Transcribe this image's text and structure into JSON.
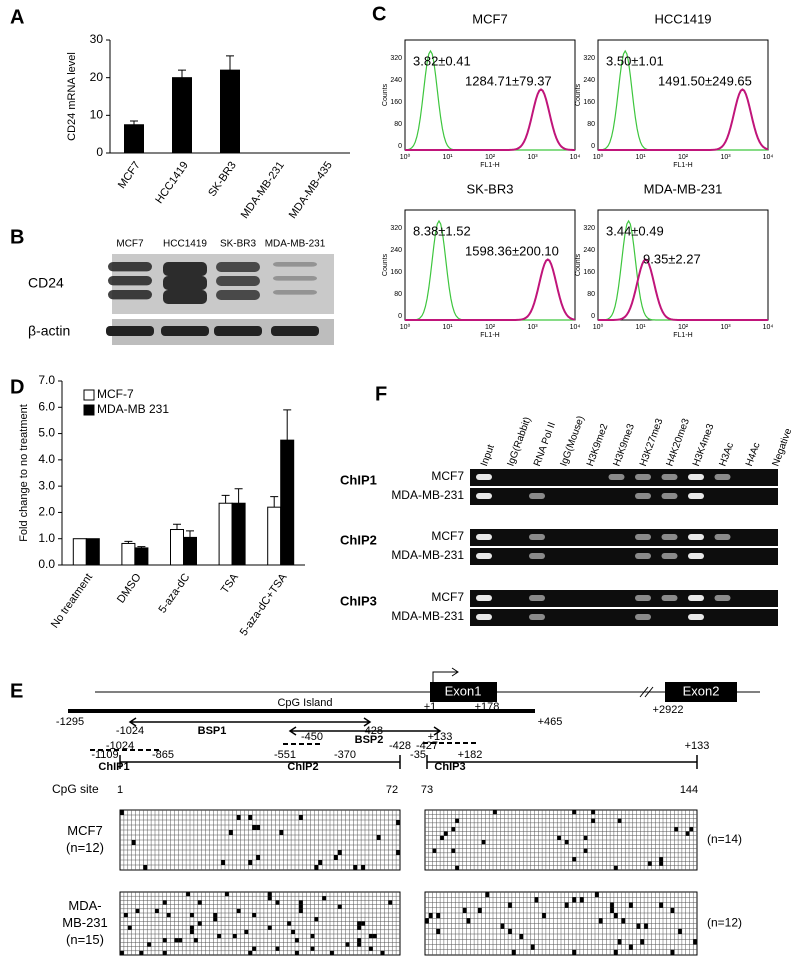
{
  "chart_data": [
    {
      "type": "bar",
      "label": "A",
      "ylabel": "CD24 mRNA level",
      "categories": [
        "MCF7",
        "HCC1419",
        "SK-BR3",
        "MDA-MB-231",
        "MDA-MB-435"
      ],
      "values": [
        7.5,
        20,
        22,
        0,
        0
      ],
      "errors": [
        1,
        2,
        3.8,
        0,
        0
      ],
      "color": "#000000",
      "ylim": [
        0,
        30
      ],
      "yticks": [
        0,
        10,
        20,
        30
      ]
    },
    {
      "type": "grouped-bar",
      "label": "D",
      "ylabel": "Fold change to no treatment",
      "categories": [
        "No treatment",
        "DMSO",
        "5-aza-dC",
        "TSA",
        "5-aza-dC+TSA"
      ],
      "series": [
        {
          "name": "MCF-7",
          "color": "#ffffff",
          "values": [
            1,
            0.82,
            1.35,
            2.35,
            2.2
          ],
          "errors": [
            0,
            0.08,
            0.2,
            0.3,
            0.4
          ]
        },
        {
          "name": "MDA-MB 231",
          "color": "#000000",
          "values": [
            1,
            0.65,
            1.05,
            2.35,
            4.75
          ],
          "errors": [
            0,
            0.05,
            0.25,
            0.55,
            1.15
          ]
        }
      ],
      "ylim": [
        0,
        7
      ],
      "yticks": [
        {
          "value": 0,
          "label": "0.0"
        },
        {
          "value": 1,
          "label": "1.0"
        },
        {
          "value": 2,
          "label": "2.0"
        },
        {
          "value": 3,
          "label": "3.0"
        },
        {
          "value": 4,
          "label": "4.0"
        },
        {
          "value": 5,
          "label": "5.0"
        },
        {
          "value": 6,
          "label": "6.0"
        },
        {
          "value": 7,
          "label": "7.0"
        }
      ]
    }
  ],
  "panel_b": {
    "label": "B",
    "lanes": [
      "MCF7",
      "HCC1419",
      "SK-BR3",
      "MDA-MB-231"
    ],
    "rows": [
      "CD24",
      "β-actin"
    ]
  },
  "panel_c": {
    "label": "C",
    "ylabel": "Counts",
    "xlabel": "FL1-H",
    "yticks": [
      "0",
      "80",
      "160",
      "240",
      "320"
    ],
    "xticks": [
      "10⁰",
      "10¹",
      "10²",
      "10³",
      "10⁴"
    ],
    "plots": [
      {
        "title": "MCF7",
        "low": "3.82±0.41",
        "high": "1284.71±79.37"
      },
      {
        "title": "HCC1419",
        "low": "3.50±1.01",
        "high": "1491.50±249.65"
      },
      {
        "title": "SK-BR3",
        "low": "8.38±1.52",
        "high": "1598.36±200.10"
      },
      {
        "title": "MDA-MB-231",
        "low": "3.44±0.49",
        "high": "9.35±2.27"
      }
    ]
  },
  "panel_f": {
    "label": "F",
    "lanes": [
      "Input",
      "IgG(Rabbit)",
      "RNA Pol II",
      "IgG(Mouse)",
      "H3K9me2",
      "H3K9me3",
      "H3K27me3",
      "H4K20me3",
      "H3K4me3",
      "H3Ac",
      "H4Ac",
      "Negative"
    ],
    "groups": [
      {
        "name": "ChIP1",
        "rows": [
          "MCF7",
          "MDA-MB-231"
        ]
      },
      {
        "name": "ChIP2",
        "rows": [
          "MCF7",
          "MDA-MB-231"
        ]
      },
      {
        "name": "ChIP3",
        "rows": [
          "MCF7",
          "MDA-MB-231"
        ]
      }
    ]
  },
  "panel_e": {
    "label": "E",
    "exon1": "Exon1",
    "exon2": "Exon2",
    "island": "CpG Island",
    "map_labels": [
      "-1295",
      "+1",
      "+178",
      "+465",
      "+2922",
      "-1024",
      "-428",
      "BSP1",
      "-450",
      "BSP2",
      "+133",
      "-1109",
      "-865",
      "ChIP1",
      "-551",
      "-370",
      "ChIP2",
      "-35",
      "+182",
      "ChIP3"
    ],
    "cpg_site": "CpG site",
    "left_region": [
      "-1024",
      "-428",
      "1",
      "72"
    ],
    "right_region": [
      "-427",
      "+133",
      "73",
      "144"
    ],
    "samples": [
      {
        "lines": [
          "MCF7",
          "(n=12)"
        ],
        "right": "(n=14)"
      },
      {
        "lines": [
          "MDA-",
          "MB-231",
          "(n=15)"
        ],
        "right": "(n=12)"
      }
    ]
  }
}
